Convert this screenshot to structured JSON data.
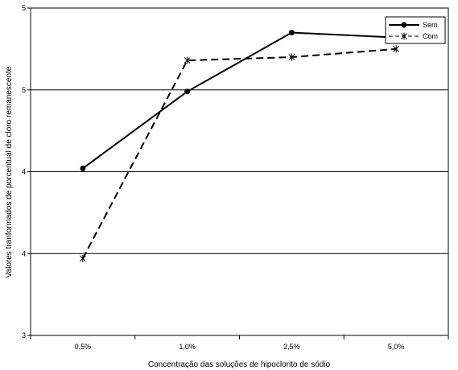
{
  "chart_data": {
    "type": "line",
    "title": "",
    "xlabel": "Concentração das soluções de hipoclorito de sódio",
    "ylabel": "Valores tranformados de porcentual de cloro remanescente",
    "categories": [
      "0,5%",
      "1,0%",
      "2,5%",
      "5,0%"
    ],
    "y_tick_labels": [
      "3",
      "4",
      "4",
      "5",
      "5"
    ],
    "ylim": [
      3,
      5
    ],
    "grid": true,
    "legend_position": "top-right",
    "series": [
      {
        "name": "Sem",
        "values": [
          4.02,
          4.49,
          4.85,
          4.82
        ],
        "marker": "circle",
        "line": "solid",
        "color": "#000000"
      },
      {
        "name": "Com",
        "values": [
          3.47,
          4.68,
          4.7,
          4.75
        ],
        "marker": "star",
        "line": "dashed",
        "color": "#000000"
      }
    ]
  }
}
